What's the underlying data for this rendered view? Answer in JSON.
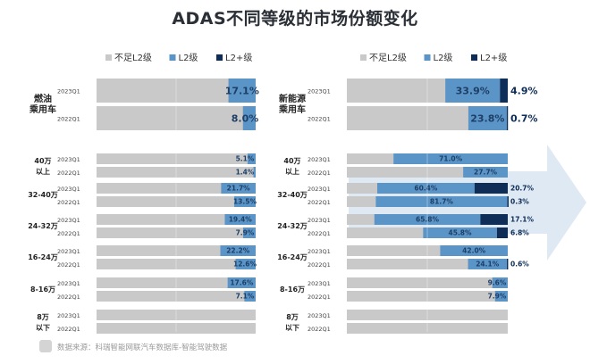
{
  "title": "ADAS不同等级的市场份额变化",
  "source": "数据来源：科瑞智能网联汽车数据库-智能驾驶数据",
  "colors": {
    "base": "#c9c9c9",
    "l2": "#5b95c8",
    "l2plus": "#0f2e57",
    "arrow": "#dfe9f4"
  },
  "chart_data": [
    {
      "type": "bar",
      "panel": "left",
      "legend": [
        "不足L2级",
        "L2级",
        "L2+级"
      ],
      "groups": [
        {
          "name": "燃油乘用车",
          "rows": [
            {
              "label": "2023Q1",
              "l2": 17.1,
              "l2plus": 0
            },
            {
              "label": "2022Q1",
              "l2": 8.0,
              "l2plus": 0
            }
          ]
        },
        {
          "name": "40万以上",
          "rows": [
            {
              "label": "2023Q1",
              "l2": 5.1,
              "l2plus": 0
            },
            {
              "label": "2022Q1",
              "l2": 1.4,
              "l2plus": 0
            }
          ]
        },
        {
          "name": "32-40万",
          "rows": [
            {
              "label": "2023Q1",
              "l2": 21.7,
              "l2plus": 0
            },
            {
              "label": "2022Q1",
              "l2": 13.5,
              "l2plus": 0
            }
          ]
        },
        {
          "name": "24-32万",
          "rows": [
            {
              "label": "2023Q1",
              "l2": 19.4,
              "l2plus": 0
            },
            {
              "label": "2022Q1",
              "l2": 7.9,
              "l2plus": 0
            }
          ]
        },
        {
          "name": "16-24万",
          "rows": [
            {
              "label": "2023Q1",
              "l2": 22.2,
              "l2plus": 0
            },
            {
              "label": "2022Q1",
              "l2": 12.6,
              "l2plus": 0
            }
          ]
        },
        {
          "name": "8-16万",
          "rows": [
            {
              "label": "2023Q1",
              "l2": 17.6,
              "l2plus": 0
            },
            {
              "label": "2022Q1",
              "l2": 7.1,
              "l2plus": 0
            }
          ]
        },
        {
          "name": "8万以下",
          "rows": [
            {
              "label": "2023Q1",
              "l2": 0,
              "l2plus": 0
            },
            {
              "label": "2022Q1",
              "l2": 0,
              "l2plus": 0
            }
          ]
        }
      ]
    },
    {
      "type": "bar",
      "panel": "right",
      "legend": [
        "不足L2级",
        "L2级",
        "L2+级"
      ],
      "groups": [
        {
          "name": "新能源乘用车",
          "rows": [
            {
              "label": "2023Q1",
              "l2": 33.9,
              "l2plus": 4.9
            },
            {
              "label": "2022Q1",
              "l2": 23.8,
              "l2plus": 0.7
            }
          ]
        },
        {
          "name": "40万以上",
          "rows": [
            {
              "label": "2023Q1",
              "l2": 71.0,
              "l2plus": 0
            },
            {
              "label": "2022Q1",
              "l2": 27.7,
              "l2plus": 0
            }
          ]
        },
        {
          "name": "32-40万",
          "rows": [
            {
              "label": "2023Q1",
              "l2": 60.4,
              "l2plus": 20.7
            },
            {
              "label": "2022Q1",
              "l2": 81.7,
              "l2plus": 0.3
            }
          ]
        },
        {
          "name": "24-32万",
          "rows": [
            {
              "label": "2023Q1",
              "l2": 65.8,
              "l2plus": 17.1
            },
            {
              "label": "2022Q1",
              "l2": 45.8,
              "l2plus": 6.8
            }
          ]
        },
        {
          "name": "16-24万",
          "rows": [
            {
              "label": "2023Q1",
              "l2": 42.0,
              "l2plus": 0
            },
            {
              "label": "2022Q1",
              "l2": 24.1,
              "l2plus": 0.6
            }
          ]
        },
        {
          "name": "8-16万",
          "rows": [
            {
              "label": "2023Q1",
              "l2": 9.6,
              "l2plus": 0
            },
            {
              "label": "2022Q1",
              "l2": 7.9,
              "l2plus": 0
            }
          ]
        },
        {
          "name": "8万以下",
          "rows": [
            {
              "label": "2023Q1",
              "l2": 0,
              "l2plus": 0
            },
            {
              "label": "2022Q1",
              "l2": 0,
              "l2plus": 0
            }
          ]
        }
      ]
    }
  ]
}
